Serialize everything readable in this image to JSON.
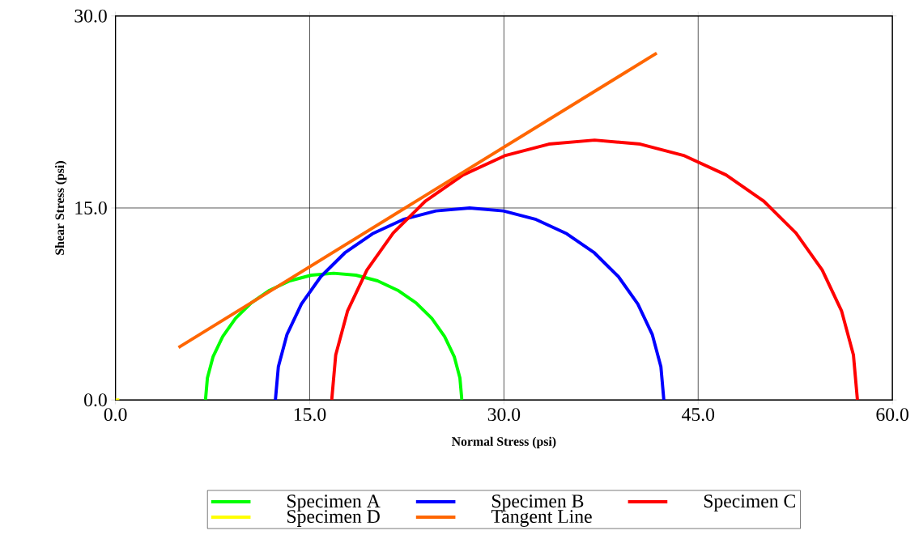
{
  "chart_data": {
    "type": "line",
    "xlabel": "Normal Stress (psi)",
    "ylabel": "Shear Stress (psi)",
    "xlim": [
      0,
      60
    ],
    "ylim": [
      0,
      30
    ],
    "xticks": [
      {
        "value": 0,
        "label": "0.0"
      },
      {
        "value": 15,
        "label": "15.0"
      },
      {
        "value": 30,
        "label": "30.0"
      },
      {
        "value": 45,
        "label": "45.0"
      },
      {
        "value": 60,
        "label": "60.0"
      }
    ],
    "yticks": [
      {
        "value": 0,
        "label": "0.0"
      },
      {
        "value": 15,
        "label": "15.0"
      },
      {
        "value": 30,
        "label": "30.0"
      }
    ],
    "grid": true,
    "legend": "bottom",
    "marker": "none",
    "line_style": "solid",
    "series": [
      {
        "name": "Specimen A",
        "color": "#00ff00",
        "x": [
          6.95,
          7.1,
          7.54,
          8.28,
          9.27,
          10.48,
          11.9,
          13.46,
          15.13,
          16.85,
          18.57,
          20.24,
          21.8,
          23.22,
          24.43,
          25.42,
          26.16,
          26.6,
          26.75
        ],
        "values": [
          0,
          1.72,
          3.39,
          4.95,
          6.37,
          7.58,
          8.57,
          9.31,
          9.75,
          9.9,
          9.75,
          9.31,
          8.57,
          7.58,
          6.37,
          4.95,
          3.39,
          1.72,
          0
        ]
      },
      {
        "name": "Specimen B",
        "color": "#0000ff",
        "x": [
          12.35,
          12.58,
          13.25,
          14.36,
          15.86,
          17.71,
          19.85,
          22.22,
          24.74,
          27.35,
          29.96,
          32.48,
          34.85,
          36.99,
          38.84,
          40.34,
          41.45,
          42.12,
          42.35
        ],
        "values": [
          0,
          2.61,
          5.13,
          7.5,
          9.64,
          11.49,
          12.99,
          14.1,
          14.77,
          15,
          14.77,
          14.1,
          12.99,
          11.49,
          9.64,
          7.5,
          5.13,
          2.61,
          0
        ]
      },
      {
        "name": "Specimen C",
        "color": "#ff0000",
        "x": [
          16.7,
          17.01,
          17.92,
          19.42,
          21.45,
          23.95,
          26.85,
          30.06,
          33.47,
          37,
          40.53,
          43.94,
          47.15,
          50.05,
          52.55,
          54.58,
          56.08,
          56.99,
          57.3
        ],
        "values": [
          0,
          3.53,
          6.94,
          10.15,
          13.05,
          15.55,
          17.58,
          19.08,
          19.99,
          20.3,
          19.99,
          19.08,
          17.58,
          15.55,
          13.05,
          10.15,
          6.94,
          3.53,
          0
        ]
      },
      {
        "name": "Specimen D",
        "color": "#ffff00",
        "x": [
          0,
          0.3
        ],
        "values": [
          0,
          0
        ]
      },
      {
        "name": "Tangent Line",
        "color": "#ff6600",
        "x": [
          4.87,
          41.8
        ],
        "values": [
          4.1,
          27.1
        ]
      }
    ]
  }
}
